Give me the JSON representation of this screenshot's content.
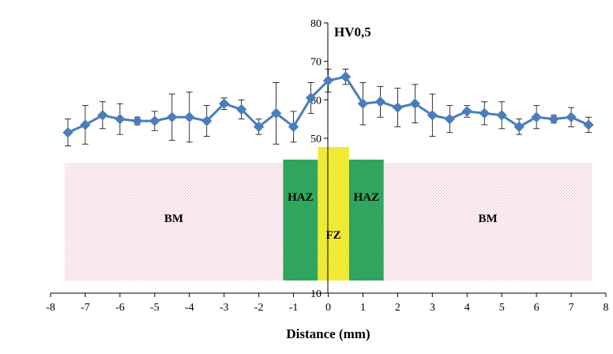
{
  "chart_data": {
    "type": "line",
    "ylabel": "HV0,5",
    "xlabel": "Distance (mm)",
    "xlim": [
      -8,
      8
    ],
    "xticks": [
      -8,
      -7,
      -6,
      -5,
      -4,
      -3,
      -2,
      -1,
      0,
      1,
      2,
      3,
      4,
      5,
      6,
      7,
      8
    ],
    "yticks": [
      10,
      50,
      60,
      70,
      80
    ],
    "grid": false,
    "series": [
      {
        "color": "#4a7ebb",
        "marker": "diamond",
        "x": [
          -7.5,
          -7,
          -6.5,
          -6,
          -5.5,
          -5,
          -4.5,
          -4,
          -3.5,
          -3,
          -2.5,
          -2,
          -1.5,
          -1,
          -0.5,
          0,
          0.5,
          1,
          1.5,
          2,
          2.5,
          3,
          3.5,
          4,
          4.5,
          5,
          5.5,
          6,
          6.5,
          7,
          7.5
        ],
        "y": [
          51.5,
          53.5,
          56,
          55,
          54.5,
          54.5,
          55.5,
          55.5,
          54.5,
          59,
          57.5,
          53,
          56.5,
          53,
          60.5,
          65,
          66,
          59,
          59.5,
          58,
          59,
          56,
          55,
          57,
          56.5,
          56,
          53,
          55.5,
          55,
          55.5,
          53.5
        ],
        "error": [
          3.5,
          5,
          3.5,
          4,
          1,
          2.5,
          6,
          6.5,
          4,
          1.5,
          2.5,
          2,
          8,
          4,
          4,
          3,
          2,
          5.5,
          4,
          5,
          5,
          5.5,
          3.5,
          1.5,
          3,
          3.5,
          2,
          3,
          1,
          2.5,
          2
        ]
      }
    ],
    "regions": [
      {
        "label": "BM",
        "x_start": -7.6,
        "x_end": -1.3,
        "color": "#f6dfe9"
      },
      {
        "label": "HAZ",
        "x_start": -1.3,
        "x_end": -0.3,
        "color": "#2eaa5e"
      },
      {
        "label": "FZ",
        "x_start": -0.3,
        "x_end": 0.6,
        "color": "#f4f03a"
      },
      {
        "label": "HAZ",
        "x_start": 0.6,
        "x_end": 1.6,
        "color": "#2eaa5e"
      },
      {
        "label": "BM",
        "x_start": 1.6,
        "x_end": 7.6,
        "color": "#f6dfe9"
      }
    ]
  }
}
